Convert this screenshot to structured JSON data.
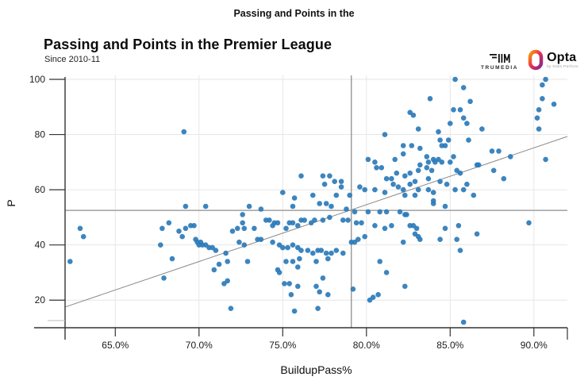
{
  "page": {
    "header_title": "Passing and Points in the"
  },
  "chart": {
    "title": "Passing and Points in the Premier League",
    "subtitle": "Since 2010-11"
  },
  "logos": {
    "trumedia": {
      "label": "TRUMEDIA"
    },
    "opta": {
      "label": "Opta",
      "sublabel": "by Stats Perform"
    }
  },
  "colors": {
    "point": "#2b7bba",
    "grid": "#e6e6e6",
    "mean_line_h": "#a8a8a8",
    "mean_line_v": "#6e6e6e",
    "trend_line": "#8a8a8a",
    "axis": "#333333",
    "background": "#ffffff"
  },
  "chart_data": {
    "type": "scatter",
    "title": "Passing and Points in the Premier League",
    "subtitle": "Since 2010-11",
    "xlabel": "BuildupPass%",
    "ylabel": "P",
    "xlim": [
      62,
      92
    ],
    "ylim": [
      10,
      100
    ],
    "grid": true,
    "x_ticks": [
      {
        "value": 65,
        "label": "65.0%"
      },
      {
        "value": 70,
        "label": "70.0%"
      },
      {
        "value": 75,
        "label": "75.0%"
      },
      {
        "value": 80,
        "label": "80.0%"
      },
      {
        "value": 85,
        "label": "85.0%"
      },
      {
        "value": 90,
        "label": "90.0%"
      }
    ],
    "y_ticks": [
      {
        "value": 20,
        "label": "20"
      },
      {
        "value": 40,
        "label": "40"
      },
      {
        "value": 60,
        "label": "60"
      },
      {
        "value": 80,
        "label": "80"
      },
      {
        "value": 100,
        "label": "100"
      }
    ],
    "mean_x": 79.1,
    "mean_y": 52.5,
    "trend": {
      "x1": 62,
      "y1": 17.5,
      "x2": 92,
      "y2": 79.3
    },
    "points": [
      [
        69.1,
        81
      ],
      [
        85.3,
        100
      ],
      [
        90.7,
        100
      ],
      [
        85.8,
        97
      ],
      [
        90.5,
        98
      ],
      [
        83.8,
        93
      ],
      [
        90.5,
        93
      ],
      [
        91.2,
        91
      ],
      [
        86.2,
        92
      ],
      [
        85.2,
        89
      ],
      [
        85.6,
        89
      ],
      [
        90.3,
        89
      ],
      [
        82.6,
        88
      ],
      [
        82.8,
        87
      ],
      [
        85.8,
        86
      ],
      [
        90.2,
        86
      ],
      [
        85.0,
        84
      ],
      [
        86.0,
        84
      ],
      [
        83.1,
        82
      ],
      [
        86.9,
        82
      ],
      [
        90.3,
        82
      ],
      [
        84.3,
        81
      ],
      [
        84.4,
        78
      ],
      [
        86.1,
        78
      ],
      [
        84.9,
        78
      ],
      [
        82.2,
        76
      ],
      [
        82.7,
        76
      ],
      [
        83.2,
        75
      ],
      [
        84.5,
        76
      ],
      [
        84.7,
        76
      ],
      [
        87.5,
        74
      ],
      [
        87.9,
        74
      ],
      [
        82.2,
        73
      ],
      [
        83.6,
        72
      ],
      [
        88.6,
        72
      ],
      [
        90.7,
        71
      ],
      [
        84.0,
        71
      ],
      [
        84.3,
        71
      ],
      [
        83.7,
        70
      ],
      [
        84.1,
        70
      ],
      [
        84.5,
        70
      ],
      [
        85.0,
        70
      ],
      [
        85.2,
        72
      ],
      [
        83.2,
        69
      ],
      [
        86.6,
        69
      ],
      [
        86.7,
        69
      ],
      [
        82.6,
        66
      ],
      [
        83.1,
        67
      ],
      [
        83.6,
        68
      ],
      [
        83.9,
        67
      ],
      [
        85.4,
        67
      ],
      [
        85.6,
        66
      ],
      [
        87.6,
        67
      ],
      [
        88.2,
        64
      ],
      [
        83.7,
        64
      ],
      [
        82.9,
        63
      ],
      [
        82.3,
        65
      ],
      [
        84.4,
        63
      ],
      [
        84.8,
        62
      ],
      [
        86.0,
        62
      ],
      [
        85.8,
        60
      ],
      [
        82.6,
        62
      ],
      [
        82.2,
        60
      ],
      [
        83.1,
        60
      ],
      [
        83.7,
        60
      ],
      [
        84.0,
        59
      ],
      [
        85.3,
        60
      ],
      [
        86.4,
        58
      ],
      [
        82.9,
        58
      ],
      [
        82.3,
        58
      ],
      [
        84.0,
        56
      ],
      [
        81.1,
        80
      ],
      [
        80.1,
        71
      ],
      [
        80.5,
        70
      ],
      [
        80.9,
        68
      ],
      [
        81.7,
        71
      ],
      [
        81.8,
        66
      ],
      [
        81.2,
        64
      ],
      [
        76.1,
        65
      ],
      [
        77.4,
        65
      ],
      [
        77.8,
        65
      ],
      [
        77.5,
        62
      ],
      [
        78.1,
        63
      ],
      [
        78.5,
        63
      ],
      [
        78.5,
        61
      ],
      [
        79.6,
        61
      ],
      [
        79.9,
        60
      ],
      [
        75.0,
        59
      ],
      [
        75.7,
        57
      ],
      [
        76.8,
        58
      ],
      [
        78.2,
        58
      ],
      [
        79.0,
        58
      ],
      [
        80.6,
        68
      ],
      [
        81.5,
        64
      ],
      [
        81.9,
        61
      ],
      [
        80.5,
        60
      ],
      [
        81.1,
        59
      ],
      [
        81.6,
        62
      ],
      [
        62.9,
        46
      ],
      [
        63.1,
        43
      ],
      [
        62.3,
        34
      ],
      [
        69.2,
        54
      ],
      [
        70.4,
        54
      ],
      [
        67.8,
        46
      ],
      [
        68.2,
        48
      ],
      [
        68.8,
        45
      ],
      [
        69.2,
        46
      ],
      [
        69.5,
        47
      ],
      [
        69.7,
        47
      ],
      [
        67.7,
        40
      ],
      [
        68.4,
        35
      ],
      [
        69.0,
        43
      ],
      [
        69.8,
        42
      ],
      [
        69.9,
        41
      ],
      [
        70.0,
        40
      ],
      [
        70.1,
        41
      ],
      [
        70.2,
        40
      ],
      [
        70.4,
        40
      ],
      [
        70.6,
        39
      ],
      [
        70.8,
        39
      ],
      [
        71.0,
        38
      ],
      [
        71.2,
        33
      ],
      [
        70.9,
        31
      ],
      [
        71.6,
        37
      ],
      [
        71.7,
        34
      ],
      [
        71.7,
        27
      ],
      [
        71.5,
        26
      ],
      [
        67.9,
        28
      ],
      [
        71.9,
        17
      ],
      [
        73.0,
        54
      ],
      [
        72.6,
        51
      ],
      [
        73.7,
        53
      ],
      [
        75.6,
        54
      ],
      [
        77.2,
        55
      ],
      [
        77.6,
        55
      ],
      [
        77.9,
        54
      ],
      [
        78.8,
        53
      ],
      [
        79.3,
        52
      ],
      [
        80.1,
        52
      ],
      [
        80.8,
        52
      ],
      [
        81.2,
        52
      ],
      [
        72.6,
        48
      ],
      [
        72.3,
        46
      ],
      [
        72.7,
        46
      ],
      [
        73.3,
        46
      ],
      [
        74.0,
        49
      ],
      [
        74.2,
        49
      ],
      [
        74.4,
        47
      ],
      [
        74.5,
        48
      ],
      [
        74.7,
        48
      ],
      [
        75.2,
        46
      ],
      [
        75.4,
        48
      ],
      [
        75.6,
        48
      ],
      [
        75.9,
        47
      ],
      [
        76.1,
        49
      ],
      [
        76.3,
        49
      ],
      [
        76.7,
        48
      ],
      [
        76.9,
        49
      ],
      [
        77.4,
        49
      ],
      [
        77.8,
        50
      ],
      [
        78.6,
        49
      ],
      [
        78.9,
        49
      ],
      [
        79.4,
        48
      ],
      [
        79.7,
        48
      ],
      [
        80.5,
        47
      ],
      [
        81.1,
        46
      ],
      [
        81.5,
        47
      ],
      [
        72.0,
        45
      ],
      [
        72.4,
        41
      ],
      [
        72.7,
        40
      ],
      [
        73.5,
        42
      ],
      [
        73.7,
        42
      ],
      [
        74.4,
        41
      ],
      [
        74.8,
        40
      ],
      [
        75.0,
        39
      ],
      [
        75.3,
        39
      ],
      [
        75.6,
        40
      ],
      [
        75.9,
        39
      ],
      [
        76.1,
        38
      ],
      [
        76.5,
        38
      ],
      [
        76.8,
        37
      ],
      [
        77.1,
        38
      ],
      [
        77.3,
        38
      ],
      [
        77.6,
        37
      ],
      [
        77.9,
        37
      ],
      [
        78.2,
        38
      ],
      [
        78.6,
        37
      ],
      [
        79.1,
        41
      ],
      [
        79.3,
        41
      ],
      [
        79.5,
        42
      ],
      [
        79.9,
        43
      ],
      [
        72.9,
        34
      ],
      [
        75.2,
        34
      ],
      [
        75.6,
        34
      ],
      [
        76.0,
        35
      ],
      [
        77.0,
        34
      ],
      [
        77.7,
        35
      ],
      [
        75.9,
        32
      ],
      [
        74.7,
        31
      ],
      [
        74.8,
        30
      ],
      [
        77.4,
        28
      ],
      [
        80.8,
        34
      ],
      [
        81.2,
        30
      ],
      [
        75.1,
        26
      ],
      [
        75.4,
        26
      ],
      [
        75.9,
        25
      ],
      [
        75.5,
        22
      ],
      [
        77.0,
        25
      ],
      [
        77.2,
        23
      ],
      [
        77.7,
        22
      ],
      [
        79.2,
        24
      ],
      [
        80.4,
        21
      ],
      [
        80.7,
        22
      ],
      [
        80.2,
        20
      ],
      [
        75.7,
        16
      ],
      [
        77.1,
        17
      ],
      [
        84.0,
        55
      ],
      [
        84.7,
        54
      ],
      [
        82.3,
        51
      ],
      [
        82.4,
        51
      ],
      [
        82.0,
        52
      ],
      [
        82.6,
        47
      ],
      [
        82.8,
        47
      ],
      [
        83.0,
        46
      ],
      [
        82.9,
        44
      ],
      [
        83.1,
        43
      ],
      [
        83.2,
        42
      ],
      [
        82.2,
        41
      ],
      [
        84.4,
        42
      ],
      [
        84.7,
        46
      ],
      [
        85.5,
        47
      ],
      [
        85.4,
        42
      ],
      [
        85.6,
        38
      ],
      [
        86.6,
        44
      ],
      [
        89.7,
        48
      ],
      [
        82.3,
        25
      ],
      [
        85.8,
        12
      ]
    ]
  }
}
